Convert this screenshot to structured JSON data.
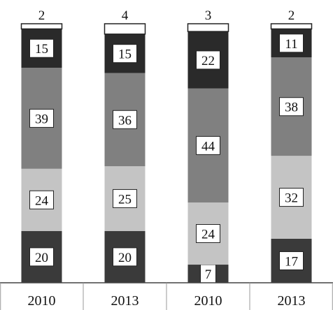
{
  "chart_data": {
    "type": "bar",
    "stacked": true,
    "categories": [
      "2010",
      "2013",
      "2010",
      "2013"
    ],
    "series": [
      {
        "values": [
          20,
          20,
          7,
          17
        ],
        "color": "#3a3a3a"
      },
      {
        "values": [
          24,
          25,
          24,
          32
        ],
        "color": "#c4c4c4"
      },
      {
        "values": [
          39,
          36,
          44,
          38
        ],
        "color": "#808080"
      },
      {
        "values": [
          15,
          15,
          22,
          11
        ],
        "color": "#2a2a2a"
      },
      {
        "values": [
          2,
          4,
          3,
          2
        ],
        "color": "#ffffff"
      }
    ],
    "ylim": [
      0,
      100
    ],
    "grid": false,
    "legend": "none"
  }
}
